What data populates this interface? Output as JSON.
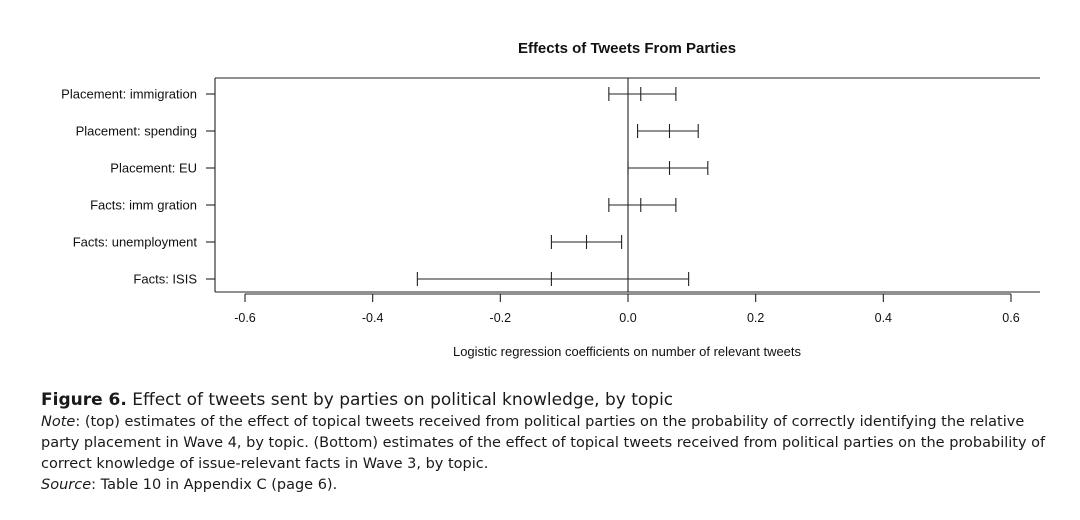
{
  "chart_data": {
    "type": "forest",
    "title": "Effects of Tweets From Parties",
    "xlabel": "Logistic regression coefficients on number of relevant tweets",
    "ylabel": "",
    "xlim": [
      -0.6,
      0.6
    ],
    "xticks": [
      "-0.6",
      "-0.4",
      "-0.2",
      "0.0",
      "0.2",
      "0.4",
      "0.6"
    ],
    "xtick_values": [
      -0.6,
      -0.4,
      -0.2,
      0.0,
      0.2,
      0.4,
      0.6
    ],
    "reference_line": 0.0,
    "grid": false,
    "rows": [
      {
        "label": "Placement: immigration",
        "low": -0.03,
        "estimate": 0.02,
        "high": 0.075
      },
      {
        "label": "Placement: spending",
        "low": 0.015,
        "estimate": 0.065,
        "high": 0.11
      },
      {
        "label": "Placement: EU",
        "low": 0.0,
        "estimate": 0.065,
        "high": 0.125
      },
      {
        "label": "Facts: imm gration",
        "low": -0.03,
        "estimate": 0.02,
        "high": 0.075
      },
      {
        "label": "Facts: unemployment",
        "low": -0.12,
        "estimate": -0.065,
        "high": -0.01
      },
      {
        "label": "Facts: ISIS",
        "low": -0.33,
        "estimate": -0.12,
        "high": 0.095
      }
    ]
  },
  "caption": {
    "figure_label": "Figure 6.",
    "figure_title": "Effect of tweets sent by parties on political knowledge, by topic",
    "note_label": "Note",
    "note_text": ": (top) estimates of the effect of topical tweets received from political parties on the probability of correctly identifying the relative party placement in Wave 4, by topic. (Bottom) estimates of the effect of topical tweets received from political parties on the probability of correct knowledge of issue-relevant facts in Wave 3, by topic.",
    "source_label": "Source",
    "source_text": ": Table 10 in Appendix C (page 6)."
  }
}
